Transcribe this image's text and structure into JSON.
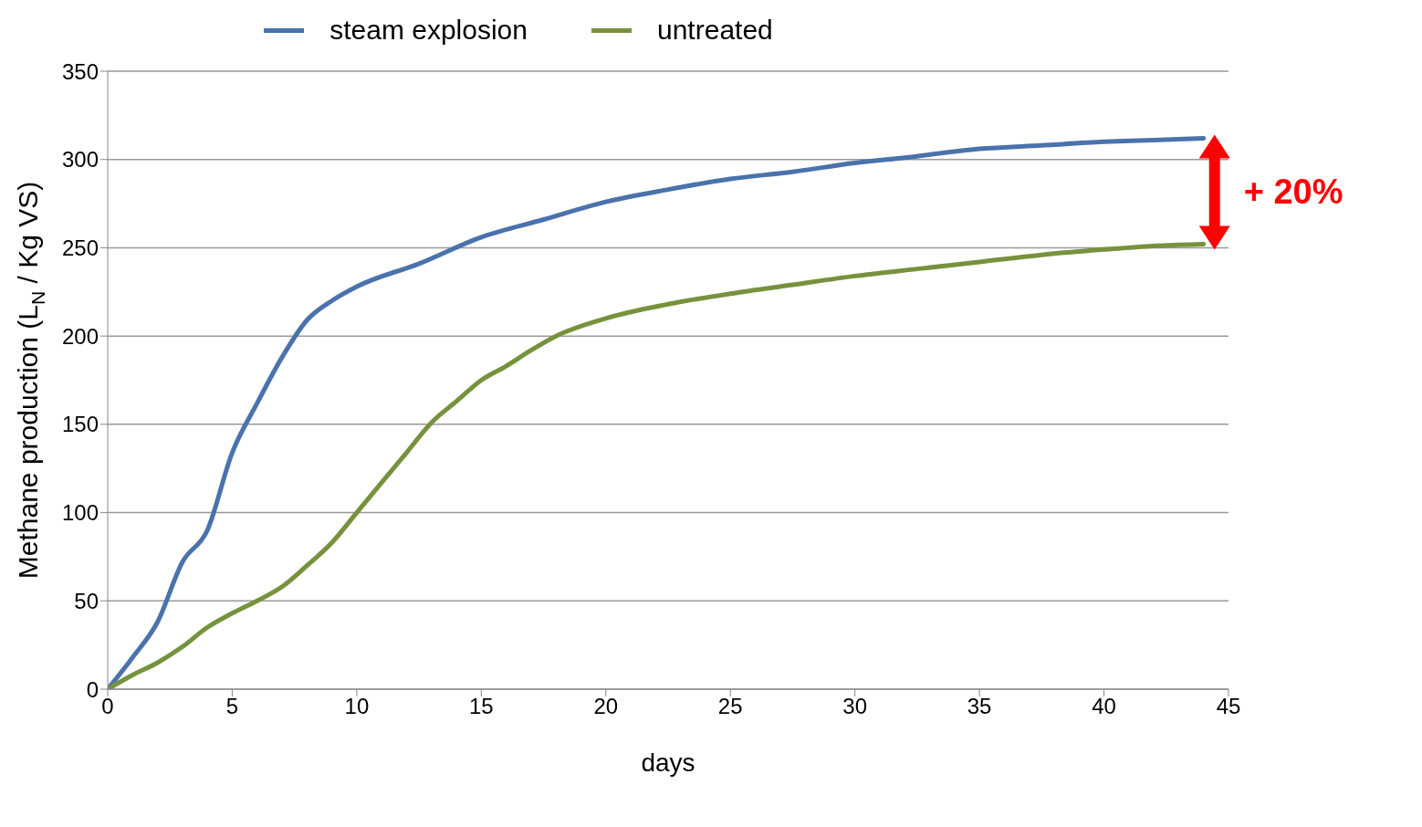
{
  "chart_data": {
    "type": "line",
    "xlabel": "days",
    "ylabel": "Methane production (L$_{N}$ / Kg VS)",
    "xlim": [
      0,
      45
    ],
    "xticks": [
      0,
      5,
      10,
      15,
      20,
      25,
      30,
      35,
      40,
      45
    ],
    "ylim": [
      0,
      350
    ],
    "yticks": [
      0,
      50,
      100,
      150,
      200,
      250,
      300,
      350
    ],
    "grid": "y",
    "legend": "top",
    "marker": "none",
    "line_style": "solid",
    "annotations": [
      "+ 20%"
    ],
    "series": [
      {
        "name": "steam explosion",
        "color": "#4a72ac",
        "x": [
          0,
          1,
          2,
          3,
          4,
          5,
          6,
          7,
          8,
          9,
          10,
          12.5,
          15,
          17.5,
          20,
          22.5,
          25,
          27.5,
          30,
          32,
          35,
          37.5,
          40,
          42,
          44
        ],
        "values": [
          0,
          18,
          38,
          72,
          90,
          134,
          162,
          188,
          209,
          220,
          228,
          241,
          256,
          266,
          276,
          283,
          289,
          293,
          298,
          301,
          306,
          308,
          310,
          311,
          312
        ]
      },
      {
        "name": "untreated",
        "color": "#76923c",
        "x": [
          0,
          1,
          2,
          3,
          4,
          5,
          6,
          7,
          8,
          9,
          10,
          11,
          12,
          13,
          14,
          15,
          16,
          17,
          18,
          20,
          22.5,
          25,
          27.5,
          30,
          32.5,
          35,
          37.5,
          40,
          42,
          44
        ],
        "values": [
          0,
          8,
          15,
          24,
          35,
          43,
          50,
          58,
          70,
          83,
          100,
          117,
          134,
          151,
          163,
          175,
          183,
          192,
          200,
          210,
          218,
          224,
          229,
          234,
          238,
          242,
          246,
          249,
          251,
          252
        ]
      }
    ]
  }
}
